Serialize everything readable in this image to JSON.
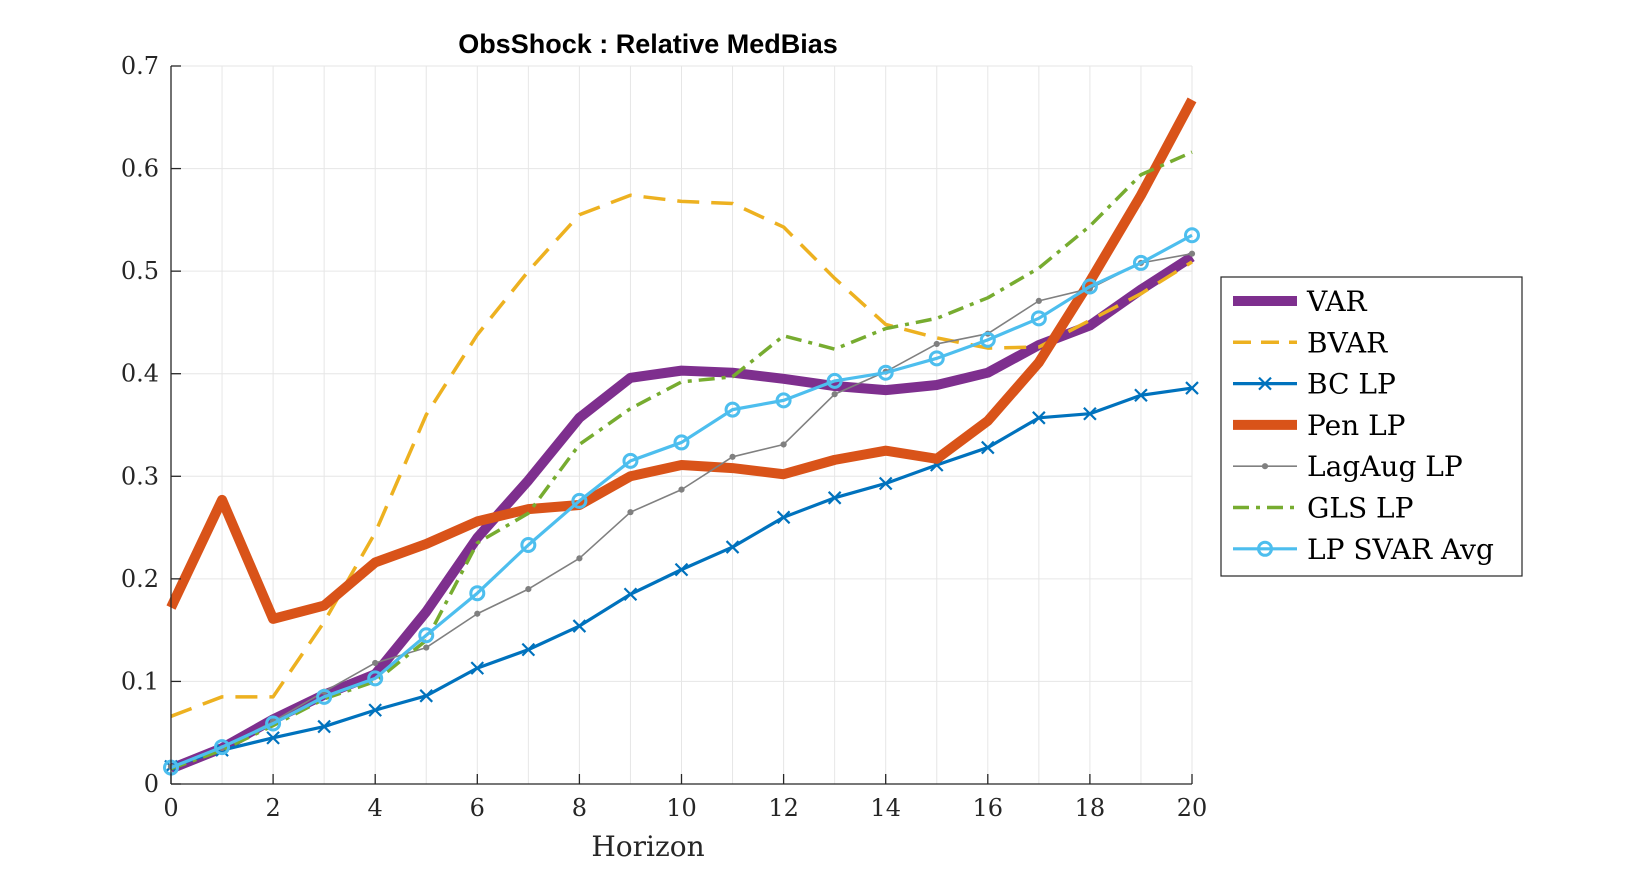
{
  "chart_data": {
    "type": "line",
    "title": "ObsShock : Relative MedBias",
    "xlabel": "Horizon",
    "ylabel": "",
    "xlim": [
      0,
      20
    ],
    "ylim": [
      0,
      0.7
    ],
    "xticks": [
      0,
      2,
      4,
      6,
      8,
      10,
      12,
      14,
      16,
      18,
      20
    ],
    "yticks": [
      0,
      0.1,
      0.2,
      0.3,
      0.4,
      0.5,
      0.6,
      0.7
    ],
    "xtick_labels": [
      "0",
      "2",
      "4",
      "6",
      "8",
      "10",
      "12",
      "14",
      "16",
      "18",
      "20"
    ],
    "ytick_labels": [
      "0",
      "0.1",
      "0.2",
      "0.3",
      "0.4",
      "0.5",
      "0.6",
      "0.7"
    ],
    "grid": true,
    "legend_position": "right-outside",
    "x": [
      0,
      1,
      2,
      3,
      4,
      5,
      6,
      7,
      8,
      9,
      10,
      11,
      12,
      13,
      14,
      15,
      16,
      17,
      18,
      19,
      20
    ],
    "series": [
      {
        "name": "VAR",
        "color": "#7E2F8E",
        "style": "solid-thick",
        "marker": "none",
        "values": [
          0.015,
          0.035,
          0.063,
          0.087,
          0.107,
          0.168,
          0.24,
          0.296,
          0.357,
          0.396,
          0.403,
          0.401,
          0.395,
          0.388,
          0.384,
          0.389,
          0.401,
          0.428,
          0.447,
          0.482,
          0.514
        ]
      },
      {
        "name": "BVAR",
        "color": "#EDB120",
        "style": "dashed",
        "marker": "none",
        "values": [
          0.066,
          0.085,
          0.085,
          0.158,
          0.245,
          0.36,
          0.438,
          0.5,
          0.555,
          0.574,
          0.568,
          0.566,
          0.543,
          0.493,
          0.448,
          0.435,
          0.425,
          0.426,
          0.452,
          0.478,
          0.509
        ]
      },
      {
        "name": "BC LP",
        "color": "#0072BD",
        "style": "solid",
        "marker": "x",
        "values": [
          0.017,
          0.033,
          0.045,
          0.056,
          0.072,
          0.086,
          0.113,
          0.131,
          0.154,
          0.185,
          0.209,
          0.231,
          0.26,
          0.279,
          0.293,
          0.311,
          0.328,
          0.357,
          0.361,
          0.379,
          0.386
        ]
      },
      {
        "name": "Pen LP",
        "color": "#D95319",
        "style": "solid-thick",
        "marker": "none",
        "values": [
          0.172,
          0.277,
          0.161,
          0.174,
          0.216,
          0.234,
          0.256,
          0.268,
          0.272,
          0.3,
          0.311,
          0.308,
          0.302,
          0.316,
          0.325,
          0.317,
          0.354,
          0.411,
          0.49,
          0.574,
          0.667
        ]
      },
      {
        "name": "LagAug LP",
        "color": "#808080",
        "style": "solid-thin",
        "marker": "dot",
        "values": [
          0.017,
          0.035,
          0.061,
          0.09,
          0.118,
          0.133,
          0.166,
          0.19,
          0.22,
          0.265,
          0.287,
          0.319,
          0.331,
          0.38,
          0.402,
          0.429,
          0.439,
          0.471,
          0.483,
          0.508,
          0.517
        ]
      },
      {
        "name": "GLS LP",
        "color": "#77AC30",
        "style": "dash-dot",
        "marker": "none",
        "values": [
          0.015,
          0.033,
          0.057,
          0.083,
          0.1,
          0.14,
          0.235,
          0.264,
          0.331,
          0.366,
          0.392,
          0.397,
          0.437,
          0.424,
          0.444,
          0.454,
          0.474,
          0.503,
          0.544,
          0.594,
          0.616
        ]
      },
      {
        "name": "LP SVAR Avg",
        "color": "#4DBEEE",
        "style": "solid",
        "marker": "circle",
        "values": [
          0.016,
          0.036,
          0.059,
          0.085,
          0.103,
          0.145,
          0.186,
          0.233,
          0.276,
          0.315,
          0.333,
          0.365,
          0.374,
          0.393,
          0.401,
          0.415,
          0.433,
          0.454,
          0.485,
          0.508,
          0.535
        ]
      }
    ]
  }
}
